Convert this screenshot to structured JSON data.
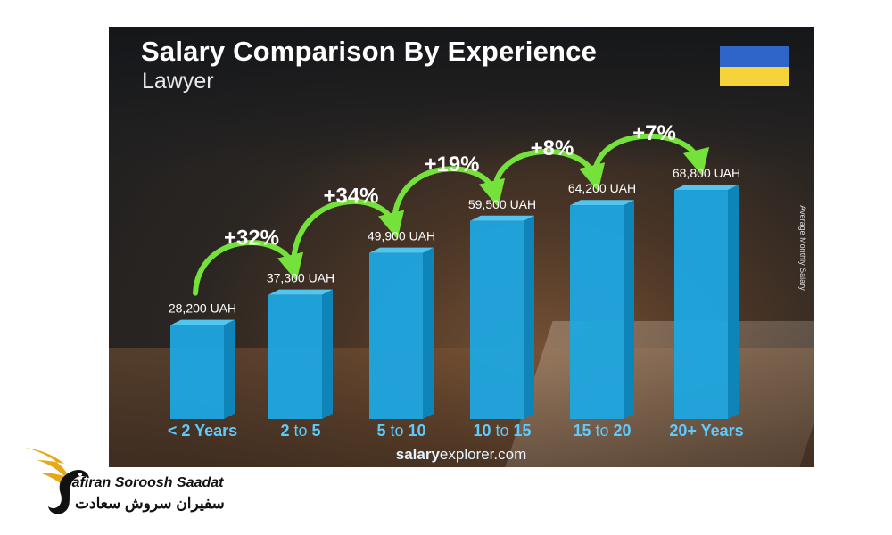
{
  "title": "Salary Comparison By Experience",
  "subtitle": "Lawyer",
  "y_axis_label": "Average Monthly Salary",
  "source": {
    "bold": "salary",
    "rest": "explorer.com"
  },
  "colors": {
    "bar_front": "#1da7e0",
    "bar_side": "#0f84b8",
    "bar_top": "#52c6f2",
    "growth": "#74e23a",
    "category": "#5ccbff",
    "flag_blue": "#2f64c9",
    "flag_yellow": "#f5d33a"
  },
  "flag_icon": "ukraine-flag-icon",
  "chart_data": {
    "type": "bar",
    "categories": [
      {
        "main": "< 2 Years",
        "connector": "",
        "end": ""
      },
      {
        "main": "2",
        "connector": "to",
        "end": "5"
      },
      {
        "main": "5",
        "connector": "to",
        "end": "10"
      },
      {
        "main": "10",
        "connector": "to",
        "end": "15"
      },
      {
        "main": "15",
        "connector": "to",
        "end": "20"
      },
      {
        "main": "20+ Years",
        "connector": "",
        "end": ""
      }
    ],
    "values": [
      28200,
      37300,
      49900,
      59500,
      64200,
      68800
    ],
    "value_labels": [
      "28,200 UAH",
      "37,300 UAH",
      "49,900 UAH",
      "59,500 UAH",
      "64,200 UAH",
      "68,800 UAH"
    ],
    "growth": [
      "+32%",
      "+34%",
      "+19%",
      "+8%",
      "+7%"
    ],
    "unit": "UAH"
  },
  "logo": {
    "name_en": "Safiran Soroosh Saadat",
    "name_fa": "سفیران سروش سعادت"
  }
}
